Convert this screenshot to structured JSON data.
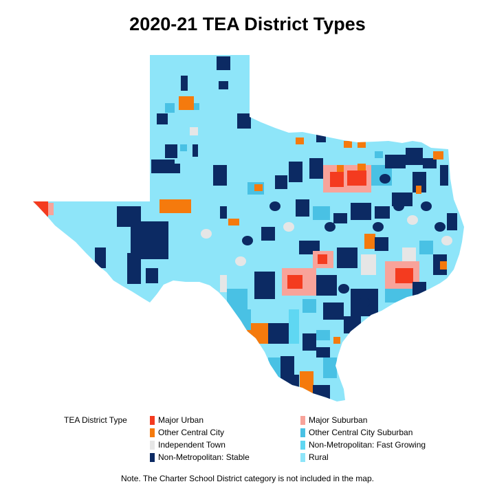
{
  "title": "2020-21 TEA District Types",
  "legend": {
    "title": "TEA District Type",
    "items": [
      {
        "label": "Major Urban",
        "color": "#f43b1f"
      },
      {
        "label": "Major Suburban",
        "color": "#f8a39a"
      },
      {
        "label": "Other Central City",
        "color": "#f57a0d"
      },
      {
        "label": "Other Central City Suburban",
        "color": "#49c1e4"
      },
      {
        "label": "Independent Town",
        "color": "#e6e6e6"
      },
      {
        "label": "Non-Metropolitan: Fast Growing",
        "color": "#5fd7f2"
      },
      {
        "label": "Non-Metropolitan: Stable",
        "color": "#0c2a63"
      },
      {
        "label": "Rural",
        "color": "#8ee5f9"
      }
    ]
  },
  "note": "Note. The Charter School District category is not included in the map."
}
